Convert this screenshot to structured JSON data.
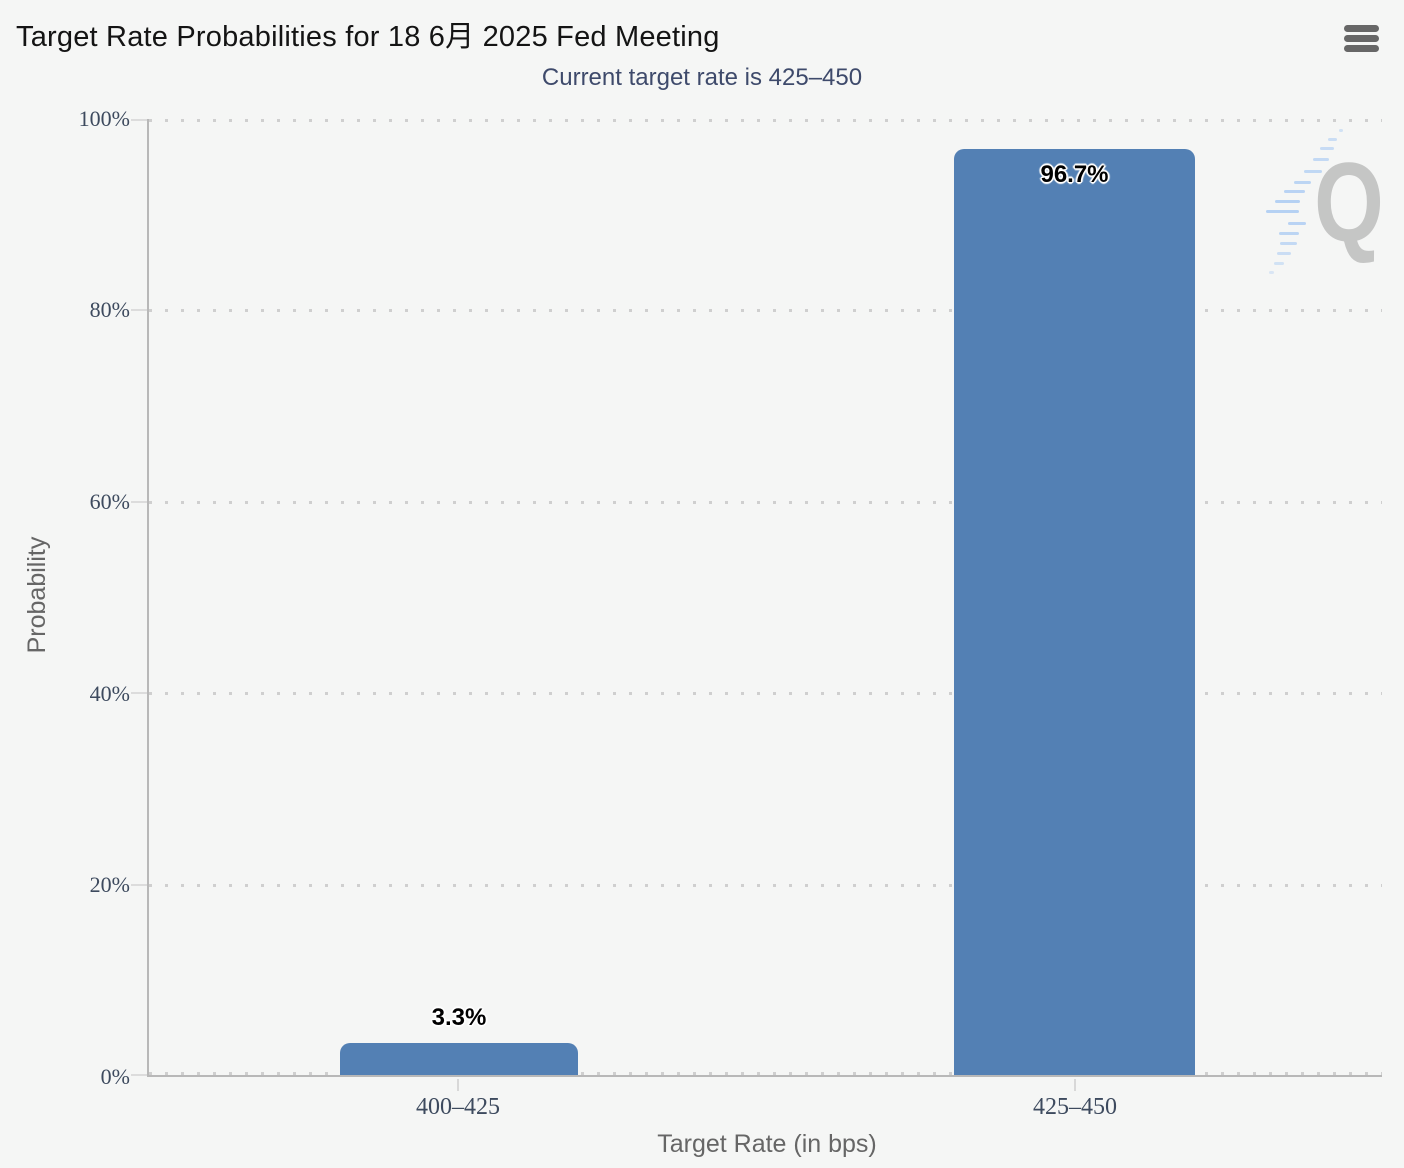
{
  "header": {
    "title": "Target Rate Probabilities for 18 6月 2025 Fed Meeting",
    "menu_icon": "hamburger-menu-icon"
  },
  "subtitle": "Current target rate is 425–450",
  "watermark": {
    "letter": "Q"
  },
  "chart_data": {
    "type": "bar",
    "title": "Target Rate Probabilities for 18 6月 2025 Fed Meeting",
    "subtitle": "Current target rate is 425–450",
    "categories": [
      "400–425",
      "425–450"
    ],
    "values": [
      3.3,
      96.7
    ],
    "data_labels": [
      "3.3%",
      "96.7%"
    ],
    "xlabel": "Target Rate (in bps)",
    "ylabel": "Probability",
    "ylim": [
      0,
      100
    ],
    "yticks": [
      0,
      20,
      40,
      60,
      80,
      100
    ],
    "ytick_labels": [
      "0%",
      "20%",
      "40%",
      "60%",
      "80%",
      "100%"
    ],
    "bar_color": "#5380b4",
    "grid": "horizontal-dotted",
    "legend": "none"
  }
}
